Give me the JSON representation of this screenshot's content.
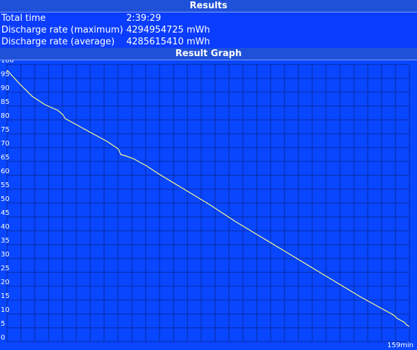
{
  "results": {
    "title": "Results",
    "rows": [
      [
        "Total time",
        "2:39:29"
      ],
      [
        "Discharge rate (maximum)",
        "4294954725 mWh"
      ],
      [
        "Discharge rate (average)",
        "4285615410 mWh"
      ]
    ]
  },
  "chart_data": {
    "type": "line",
    "title": "Result Graph",
    "xlabel": "159min",
    "x": [
      0,
      2,
      5,
      10,
      15,
      20,
      22,
      23,
      25,
      30,
      35,
      40,
      44,
      45,
      47,
      50,
      55,
      60,
      70,
      80,
      90,
      100,
      110,
      120,
      130,
      140,
      150,
      153,
      154,
      155,
      156,
      157,
      158,
      159
    ],
    "series": [
      {
        "name": "Battery",
        "color": "#ffff8c",
        "values": [
          98,
          96,
          93,
          88.5,
          85.5,
          83.5,
          82,
          80.5,
          79.5,
          77,
          74.5,
          72,
          69.5,
          67.5,
          67,
          66,
          63.5,
          60.5,
          55,
          49.5,
          43.5,
          38,
          32.5,
          27,
          21.5,
          16,
          11,
          9.5,
          8.5,
          8,
          7.5,
          7,
          6,
          5.5
        ]
      }
    ],
    "xlim": [
      0,
      159
    ],
    "ylim": [
      0,
      100
    ],
    "yticks": [
      0,
      5,
      10,
      15,
      20,
      25,
      30,
      35,
      40,
      45,
      50,
      55,
      60,
      65,
      70,
      75,
      80,
      85,
      90,
      95,
      100
    ],
    "grid": true
  }
}
